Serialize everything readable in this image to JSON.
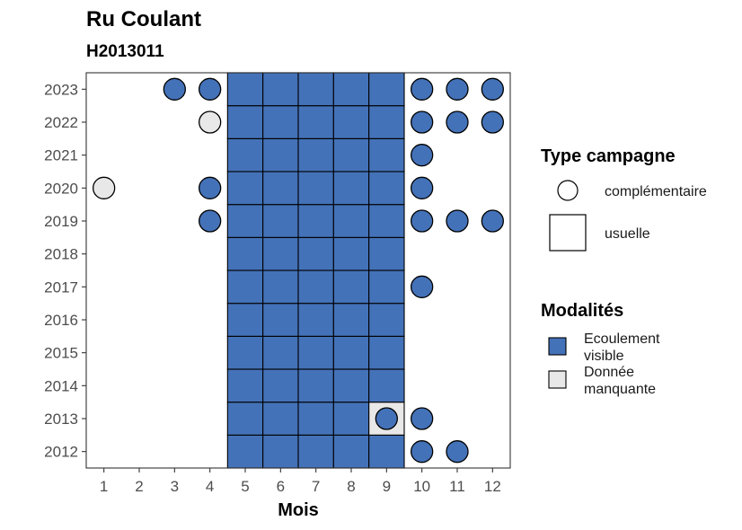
{
  "chart_data": {
    "type": "heatmap",
    "title": "Ru Coulant",
    "subtitle": "H2013011",
    "xlabel": "Mois",
    "ylabel": "",
    "x_ticks": [
      "1",
      "2",
      "3",
      "4",
      "5",
      "6",
      "7",
      "8",
      "9",
      "10",
      "11",
      "12"
    ],
    "y_ticks": [
      "2012",
      "2013",
      "2014",
      "2015",
      "2016",
      "2017",
      "2018",
      "2019",
      "2020",
      "2021",
      "2022",
      "2023"
    ],
    "xlim": [
      0.5,
      12.5
    ],
    "ylim": [
      2011.5,
      2023.5
    ],
    "grid": false,
    "legend_position": "right",
    "colors": {
      "ecoulement_visible": "#4472b8",
      "donnee_manquante": "#e8e8e8",
      "outline": "#000000"
    },
    "legend_shape": {
      "title": "Type campagne",
      "items": [
        {
          "label": "complémentaire",
          "shape": "circle"
        },
        {
          "label": "usuelle",
          "shape": "square"
        }
      ]
    },
    "legend_fill": {
      "title": "Modalités",
      "items": [
        {
          "label_line1": "Ecoulement",
          "label_line2": "visible",
          "key": "ecoulement_visible"
        },
        {
          "label_line1": "Donnée",
          "label_line2": "manquante",
          "key": "donnee_manquante"
        }
      ]
    },
    "usuelle": [
      {
        "month": 5,
        "year": 2012,
        "modalite": "ecoulement_visible"
      },
      {
        "month": 6,
        "year": 2012,
        "modalite": "ecoulement_visible"
      },
      {
        "month": 7,
        "year": 2012,
        "modalite": "ecoulement_visible"
      },
      {
        "month": 8,
        "year": 2012,
        "modalite": "ecoulement_visible"
      },
      {
        "month": 9,
        "year": 2012,
        "modalite": "ecoulement_visible"
      },
      {
        "month": 5,
        "year": 2013,
        "modalite": "ecoulement_visible"
      },
      {
        "month": 6,
        "year": 2013,
        "modalite": "ecoulement_visible"
      },
      {
        "month": 7,
        "year": 2013,
        "modalite": "ecoulement_visible"
      },
      {
        "month": 8,
        "year": 2013,
        "modalite": "ecoulement_visible"
      },
      {
        "month": 9,
        "year": 2013,
        "modalite": "donnee_manquante"
      },
      {
        "month": 5,
        "year": 2014,
        "modalite": "ecoulement_visible"
      },
      {
        "month": 6,
        "year": 2014,
        "modalite": "ecoulement_visible"
      },
      {
        "month": 7,
        "year": 2014,
        "modalite": "ecoulement_visible"
      },
      {
        "month": 8,
        "year": 2014,
        "modalite": "ecoulement_visible"
      },
      {
        "month": 9,
        "year": 2014,
        "modalite": "ecoulement_visible"
      },
      {
        "month": 5,
        "year": 2015,
        "modalite": "ecoulement_visible"
      },
      {
        "month": 6,
        "year": 2015,
        "modalite": "ecoulement_visible"
      },
      {
        "month": 7,
        "year": 2015,
        "modalite": "ecoulement_visible"
      },
      {
        "month": 8,
        "year": 2015,
        "modalite": "ecoulement_visible"
      },
      {
        "month": 9,
        "year": 2015,
        "modalite": "ecoulement_visible"
      },
      {
        "month": 5,
        "year": 2016,
        "modalite": "ecoulement_visible"
      },
      {
        "month": 6,
        "year": 2016,
        "modalite": "ecoulement_visible"
      },
      {
        "month": 7,
        "year": 2016,
        "modalite": "ecoulement_visible"
      },
      {
        "month": 8,
        "year": 2016,
        "modalite": "ecoulement_visible"
      },
      {
        "month": 9,
        "year": 2016,
        "modalite": "ecoulement_visible"
      },
      {
        "month": 5,
        "year": 2017,
        "modalite": "ecoulement_visible"
      },
      {
        "month": 6,
        "year": 2017,
        "modalite": "ecoulement_visible"
      },
      {
        "month": 7,
        "year": 2017,
        "modalite": "ecoulement_visible"
      },
      {
        "month": 8,
        "year": 2017,
        "modalite": "ecoulement_visible"
      },
      {
        "month": 9,
        "year": 2017,
        "modalite": "ecoulement_visible"
      },
      {
        "month": 5,
        "year": 2018,
        "modalite": "ecoulement_visible"
      },
      {
        "month": 6,
        "year": 2018,
        "modalite": "ecoulement_visible"
      },
      {
        "month": 7,
        "year": 2018,
        "modalite": "ecoulement_visible"
      },
      {
        "month": 8,
        "year": 2018,
        "modalite": "ecoulement_visible"
      },
      {
        "month": 9,
        "year": 2018,
        "modalite": "ecoulement_visible"
      },
      {
        "month": 5,
        "year": 2019,
        "modalite": "ecoulement_visible"
      },
      {
        "month": 6,
        "year": 2019,
        "modalite": "ecoulement_visible"
      },
      {
        "month": 7,
        "year": 2019,
        "modalite": "ecoulement_visible"
      },
      {
        "month": 8,
        "year": 2019,
        "modalite": "ecoulement_visible"
      },
      {
        "month": 9,
        "year": 2019,
        "modalite": "ecoulement_visible"
      },
      {
        "month": 5,
        "year": 2020,
        "modalite": "ecoulement_visible"
      },
      {
        "month": 6,
        "year": 2020,
        "modalite": "ecoulement_visible"
      },
      {
        "month": 7,
        "year": 2020,
        "modalite": "ecoulement_visible"
      },
      {
        "month": 8,
        "year": 2020,
        "modalite": "ecoulement_visible"
      },
      {
        "month": 9,
        "year": 2020,
        "modalite": "ecoulement_visible"
      },
      {
        "month": 5,
        "year": 2021,
        "modalite": "ecoulement_visible"
      },
      {
        "month": 6,
        "year": 2021,
        "modalite": "ecoulement_visible"
      },
      {
        "month": 7,
        "year": 2021,
        "modalite": "ecoulement_visible"
      },
      {
        "month": 8,
        "year": 2021,
        "modalite": "ecoulement_visible"
      },
      {
        "month": 9,
        "year": 2021,
        "modalite": "ecoulement_visible"
      },
      {
        "month": 5,
        "year": 2022,
        "modalite": "ecoulement_visible"
      },
      {
        "month": 6,
        "year": 2022,
        "modalite": "ecoulement_visible"
      },
      {
        "month": 7,
        "year": 2022,
        "modalite": "ecoulement_visible"
      },
      {
        "month": 8,
        "year": 2022,
        "modalite": "ecoulement_visible"
      },
      {
        "month": 9,
        "year": 2022,
        "modalite": "ecoulement_visible"
      },
      {
        "month": 5,
        "year": 2023,
        "modalite": "ecoulement_visible"
      },
      {
        "month": 6,
        "year": 2023,
        "modalite": "ecoulement_visible"
      },
      {
        "month": 7,
        "year": 2023,
        "modalite": "ecoulement_visible"
      },
      {
        "month": 8,
        "year": 2023,
        "modalite": "ecoulement_visible"
      },
      {
        "month": 9,
        "year": 2023,
        "modalite": "ecoulement_visible"
      }
    ],
    "complementaire": [
      {
        "month": 3,
        "year": 2023,
        "modalite": "ecoulement_visible"
      },
      {
        "month": 4,
        "year": 2023,
        "modalite": "ecoulement_visible"
      },
      {
        "month": 10,
        "year": 2023,
        "modalite": "ecoulement_visible"
      },
      {
        "month": 11,
        "year": 2023,
        "modalite": "ecoulement_visible"
      },
      {
        "month": 12,
        "year": 2023,
        "modalite": "ecoulement_visible"
      },
      {
        "month": 4,
        "year": 2022,
        "modalite": "donnee_manquante"
      },
      {
        "month": 10,
        "year": 2022,
        "modalite": "ecoulement_visible"
      },
      {
        "month": 11,
        "year": 2022,
        "modalite": "ecoulement_visible"
      },
      {
        "month": 12,
        "year": 2022,
        "modalite": "ecoulement_visible"
      },
      {
        "month": 10,
        "year": 2021,
        "modalite": "ecoulement_visible"
      },
      {
        "month": 1,
        "year": 2020,
        "modalite": "donnee_manquante"
      },
      {
        "month": 4,
        "year": 2020,
        "modalite": "ecoulement_visible"
      },
      {
        "month": 10,
        "year": 2020,
        "modalite": "ecoulement_visible"
      },
      {
        "month": 4,
        "year": 2019,
        "modalite": "ecoulement_visible"
      },
      {
        "month": 10,
        "year": 2019,
        "modalite": "ecoulement_visible"
      },
      {
        "month": 11,
        "year": 2019,
        "modalite": "ecoulement_visible"
      },
      {
        "month": 12,
        "year": 2019,
        "modalite": "ecoulement_visible"
      },
      {
        "month": 10,
        "year": 2017,
        "modalite": "ecoulement_visible"
      },
      {
        "month": 9,
        "year": 2013,
        "modalite": "ecoulement_visible"
      },
      {
        "month": 10,
        "year": 2013,
        "modalite": "ecoulement_visible"
      },
      {
        "month": 10,
        "year": 2012,
        "modalite": "ecoulement_visible"
      },
      {
        "month": 11,
        "year": 2012,
        "modalite": "ecoulement_visible"
      }
    ]
  }
}
